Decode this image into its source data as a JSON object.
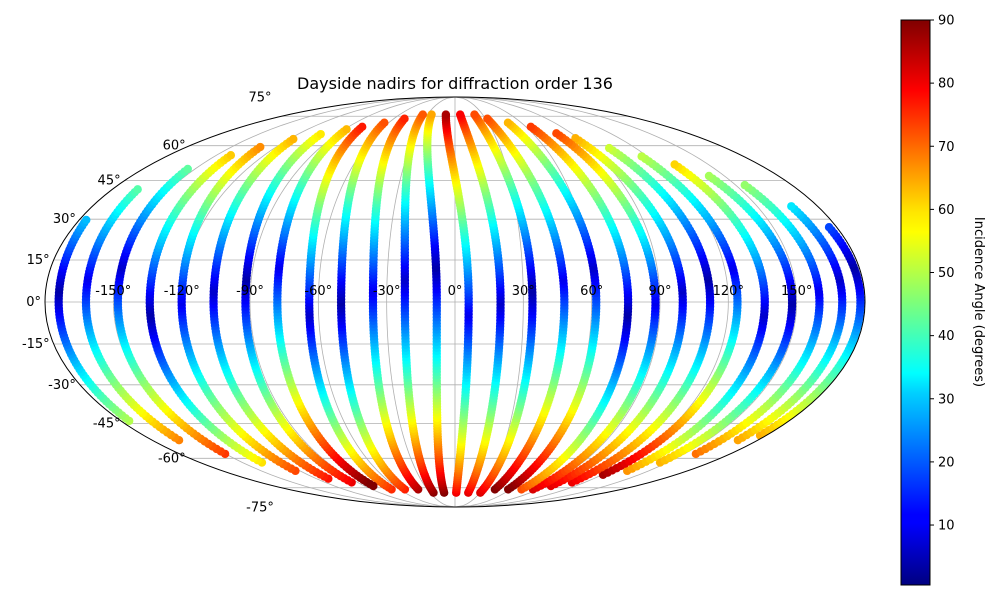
{
  "chart_data": {
    "type": "scatter",
    "projection": "mollweide",
    "title": "Dayside nadirs for diffraction order 136",
    "xlabel": "",
    "ylabel": "",
    "lon_ticks": [
      "-150°",
      "-120°",
      "-90°",
      "-60°",
      "-30°",
      "0°",
      "30°",
      "60°",
      "90°",
      "120°",
      "150°"
    ],
    "lon_tick_values": [
      -150,
      -120,
      -90,
      -60,
      -30,
      0,
      30,
      60,
      90,
      120,
      150
    ],
    "lat_ticks": [
      "-75°",
      "-60°",
      "-45°",
      "-30°",
      "-15°",
      "0°",
      "15°",
      "30°",
      "45°",
      "60°",
      "75°"
    ],
    "lat_tick_values": [
      -75,
      -60,
      -45,
      -30,
      -15,
      0,
      15,
      30,
      45,
      60,
      75
    ],
    "grid": true,
    "colormap": "jet",
    "colorbar": {
      "label": "Incidence Angle (degrees)",
      "range": [
        0.5,
        90
      ],
      "ticks": [
        "10",
        "20",
        "30",
        "40",
        "50",
        "60",
        "70",
        "80",
        "90"
      ],
      "tick_values": [
        10,
        20,
        30,
        40,
        50,
        60,
        70,
        80,
        90
      ]
    },
    "tracks_note_free": true,
    "tracks": [
      {
        "lon_eq": 178,
        "lat_min": -50,
        "lat_max": 28
      },
      {
        "lon_eq": 170,
        "lat_min": -52,
        "lat_max": 36
      },
      {
        "lon_eq": 160,
        "lat_min": -58,
        "lat_max": 44
      },
      {
        "lon_eq": 148,
        "lat_min": -62,
        "lat_max": 48
      },
      {
        "lon_eq": 136,
        "lat_min": -66,
        "lat_max": 52
      },
      {
        "lon_eq": 124,
        "lat_min": -68,
        "lat_max": 56
      },
      {
        "lon_eq": 112,
        "lat_min": -72,
        "lat_max": 60
      },
      {
        "lon_eq": 100,
        "lat_min": -74,
        "lat_max": 64
      },
      {
        "lon_eq": 88,
        "lat_min": -76,
        "lat_max": 66
      },
      {
        "lon_eq": 76,
        "lat_min": -76,
        "lat_max": 70
      },
      {
        "lon_eq": 62,
        "lat_min": -76,
        "lat_max": 72
      },
      {
        "lon_eq": 48,
        "lat_min": -76,
        "lat_max": 74
      },
      {
        "lon_eq": 34,
        "lat_min": -78,
        "lat_max": 76
      },
      {
        "lon_eq": 20,
        "lat_min": -78,
        "lat_max": 76
      },
      {
        "lon_eq": 6,
        "lat_min": -78,
        "lat_max": 76
      },
      {
        "lon_eq": -8,
        "lat_min": -78,
        "lat_max": 76
      },
      {
        "lon_eq": -22,
        "lat_min": -78,
        "lat_max": 76
      },
      {
        "lon_eq": -36,
        "lat_min": -76,
        "lat_max": 74
      },
      {
        "lon_eq": -50,
        "lat_min": -76,
        "lat_max": 72
      },
      {
        "lon_eq": -64,
        "lat_min": -76,
        "lat_max": 70
      },
      {
        "lon_eq": -78,
        "lat_min": -74,
        "lat_max": 68
      },
      {
        "lon_eq": -92,
        "lat_min": -72,
        "lat_max": 66
      },
      {
        "lon_eq": -106,
        "lat_min": -70,
        "lat_max": 64
      },
      {
        "lon_eq": -120,
        "lat_min": -66,
        "lat_max": 60
      },
      {
        "lon_eq": -134,
        "lat_min": -62,
        "lat_max": 56
      },
      {
        "lon_eq": -148,
        "lat_min": -58,
        "lat_max": 50
      },
      {
        "lon_eq": -162,
        "lat_min": -52,
        "lat_max": 42
      },
      {
        "lon_eq": -174,
        "lat_min": -44,
        "lat_max": 30
      }
    ]
  }
}
